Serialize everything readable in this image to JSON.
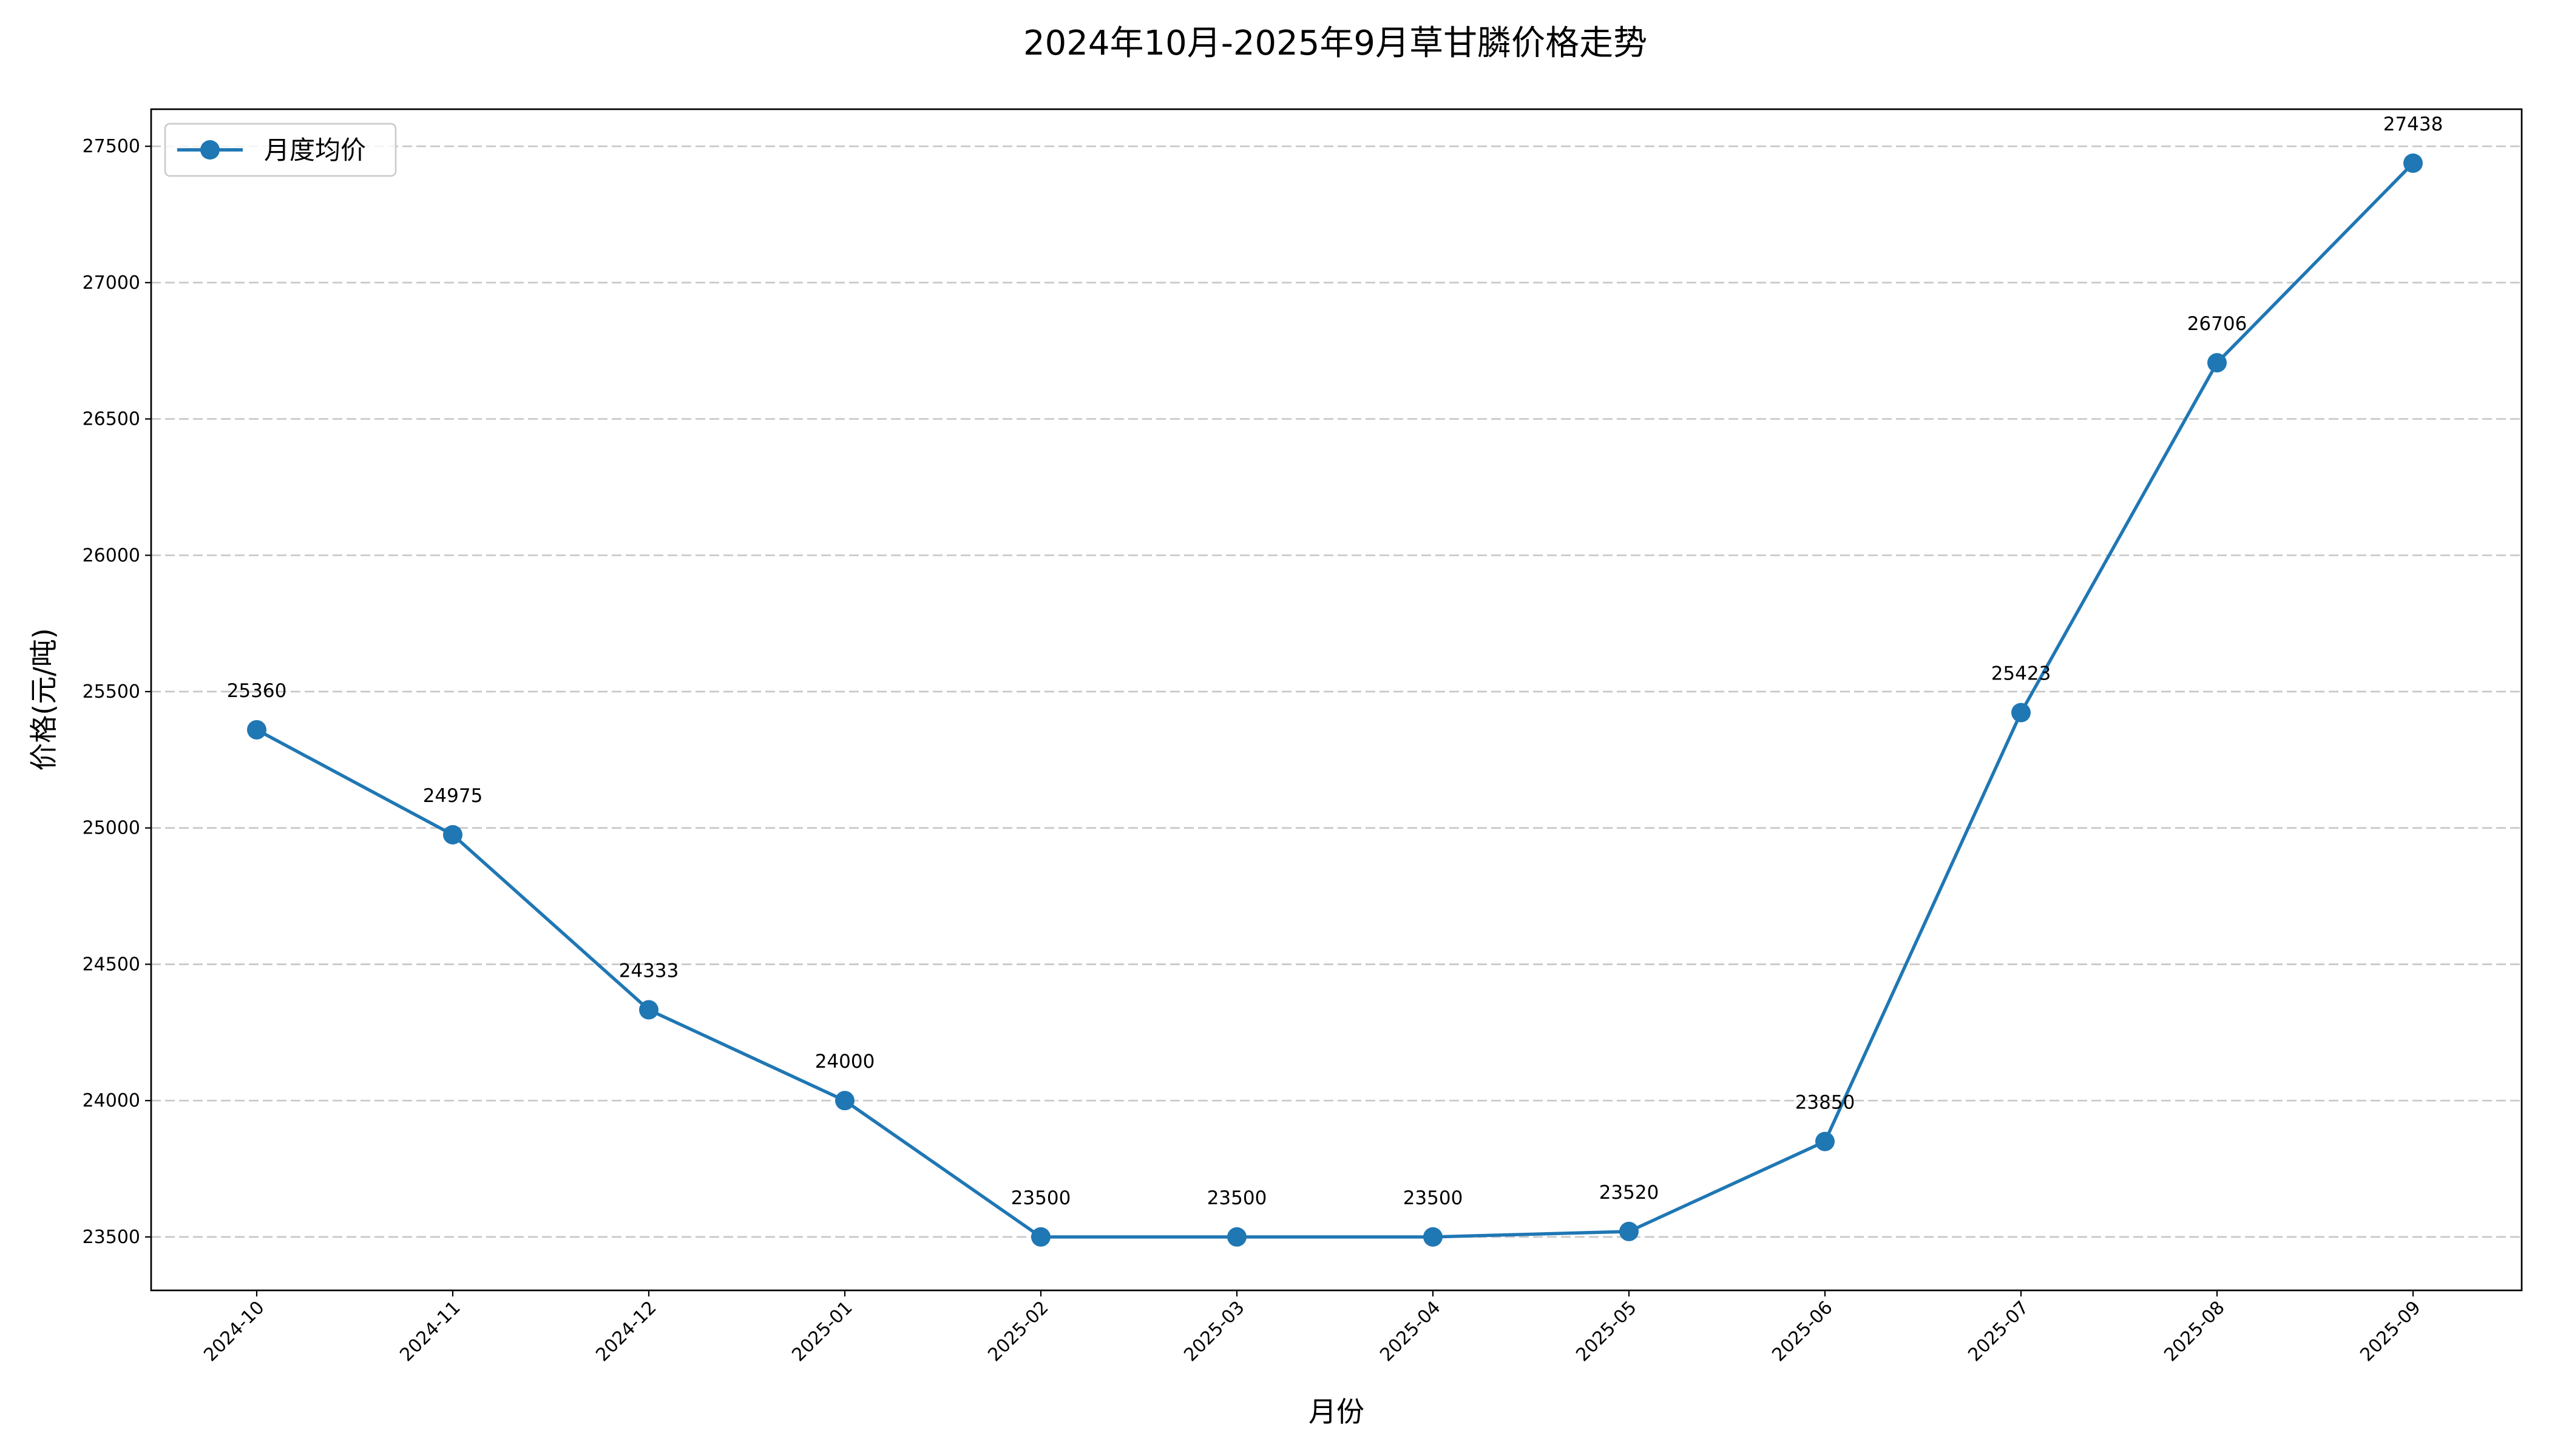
{
  "chart_data": {
    "type": "line",
    "title": "2024年10月-2025年9月草甘膦价格走势",
    "xlabel": "月份",
    "ylabel": "价格(元/吨)",
    "categories": [
      "2024-10",
      "2024-11",
      "2024-12",
      "2025-01",
      "2025-02",
      "2025-03",
      "2025-04",
      "2025-05",
      "2025-06",
      "2025-07",
      "2025-08",
      "2025-09"
    ],
    "series": [
      {
        "name": "月度均价",
        "values": [
          25360,
          24975,
          24333,
          24000,
          23500,
          23500,
          23500,
          23520,
          23850,
          25423,
          26706,
          27438
        ],
        "color": "#1f77b4"
      }
    ],
    "data_labels": [
      "25360",
      "24975",
      "24333",
      "24000",
      "23500",
      "23500",
      "23500",
      "23520",
      "23850",
      "25423",
      "26706",
      "27438"
    ],
    "yticks": [
      23500,
      24000,
      24500,
      25000,
      25500,
      26000,
      26500,
      27000,
      27500
    ],
    "ylim": [
      23304,
      27636
    ],
    "grid": "y-dashed",
    "legend": "top-left",
    "x_tick_rotation": 45
  }
}
